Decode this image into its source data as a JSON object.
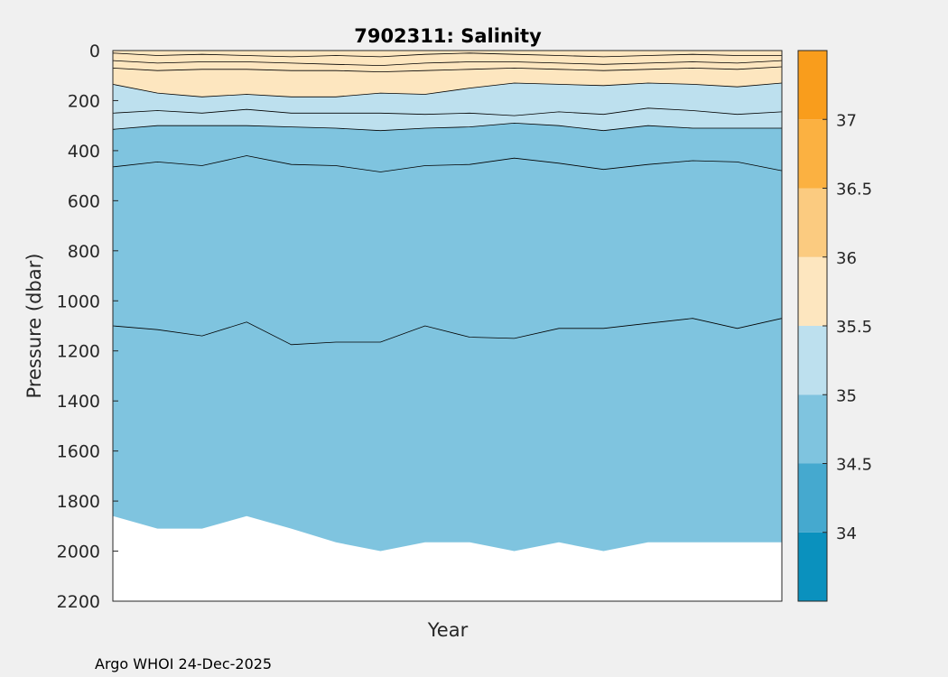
{
  "chart_data": {
    "type": "contour",
    "title": "7902311:  Salinity",
    "xlabel": "Year",
    "ylabel": "Pressure (dbar)",
    "ylim": [
      0,
      2200
    ],
    "y_inverted": true,
    "yticks": [
      0,
      200,
      400,
      600,
      800,
      1000,
      1200,
      1400,
      1600,
      1800,
      2000,
      2200
    ],
    "x_profile_index": [
      0,
      1,
      2,
      3,
      4,
      5,
      6,
      7,
      8,
      9,
      10,
      11,
      12,
      13,
      14,
      15
    ],
    "data_bottom_pressure": [
      1860,
      1910,
      1910,
      1860,
      1910,
      1965,
      2000,
      1965,
      1965,
      2000,
      1965,
      2000,
      1965,
      1965,
      1965,
      1965
    ],
    "colorbar": {
      "levels": [
        33.5,
        34,
        34.5,
        35,
        35.5,
        36,
        36.5,
        37,
        37.5
      ],
      "tick_labels": [
        "34",
        "34.5",
        "35",
        "35.5",
        "36",
        "36.5",
        "37"
      ],
      "colors": [
        "#0a91be",
        "#45a9cf",
        "#7fc4df",
        "#bde0ee",
        "#fde6bf",
        "#fbcb80",
        "#fbb141",
        "#f99d1c"
      ]
    },
    "contours": [
      {
        "level": 35.25,
        "fill": "#bde0ee",
        "pressure": [
          135,
          170,
          185,
          175,
          185,
          185,
          170,
          175,
          150,
          130,
          135,
          140,
          130,
          135,
          145,
          130
        ]
      },
      {
        "level": 35.0,
        "fill": "#bde0ee",
        "pressure": [
          250,
          240,
          250,
          235,
          250,
          250,
          250,
          255,
          250,
          260,
          245,
          255,
          230,
          240,
          255,
          245
        ]
      },
      {
        "level": 34.9,
        "fill": "#7fc4df",
        "pressure": [
          315,
          300,
          300,
          300,
          305,
          310,
          320,
          310,
          305,
          290,
          300,
          320,
          300,
          310,
          310,
          310
        ]
      },
      {
        "level": 34.8,
        "fill": "#7fc4df",
        "pressure": [
          465,
          445,
          460,
          420,
          455,
          460,
          485,
          460,
          455,
          430,
          450,
          475,
          455,
          440,
          445,
          480
        ]
      },
      {
        "level": 34.7,
        "fill": "#7fc4df",
        "pressure": [
          1100,
          1115,
          1140,
          1085,
          1175,
          1165,
          1165,
          1100,
          1145,
          1150,
          1110,
          1110,
          1090,
          1070,
          1110,
          1070
        ]
      }
    ],
    "surface_contours": [
      {
        "level": 35.75,
        "pressure": [
          70,
          80,
          75,
          75,
          80,
          80,
          85,
          80,
          75,
          70,
          75,
          80,
          75,
          70,
          75,
          65
        ]
      },
      {
        "level": 35.75,
        "pressure": [
          40,
          50,
          45,
          45,
          50,
          55,
          60,
          50,
          45,
          45,
          50,
          55,
          50,
          45,
          50,
          40
        ]
      },
      {
        "level": 35.75,
        "pressure": [
          10,
          20,
          15,
          20,
          25,
          20,
          25,
          15,
          10,
          15,
          20,
          25,
          20,
          15,
          20,
          20
        ]
      }
    ],
    "footer": "Argo WHOI 24-Dec-2025"
  }
}
